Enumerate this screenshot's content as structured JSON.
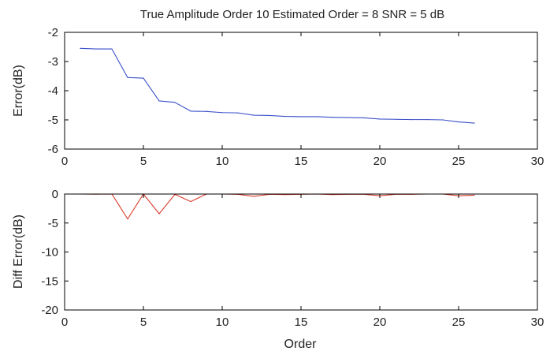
{
  "chart_data": [
    {
      "type": "line",
      "title": "True Amplitude Order 10  Estimated Order = 8   SNR = 5 dB",
      "xlabel": "",
      "ylabel": "Error(dB)",
      "xlim": [
        0,
        30
      ],
      "ylim": [
        -6,
        -2
      ],
      "xticks": [
        0,
        5,
        10,
        15,
        20,
        25,
        30
      ],
      "yticks": [
        -6,
        -5,
        -4,
        -3,
        -2
      ],
      "grid": false,
      "series": [
        {
          "color": "#3a4fc9",
          "x": [
            1,
            2,
            3,
            4,
            5,
            6,
            7,
            8,
            9,
            10,
            11,
            12,
            13,
            14,
            15,
            16,
            17,
            18,
            19,
            20,
            21,
            22,
            23,
            24,
            25,
            26
          ],
          "y": [
            -2.55,
            -2.57,
            -2.57,
            -3.55,
            -3.57,
            -4.35,
            -4.4,
            -4.7,
            -4.71,
            -4.75,
            -4.76,
            -4.84,
            -4.85,
            -4.88,
            -4.89,
            -4.89,
            -4.91,
            -4.92,
            -4.93,
            -4.97,
            -4.98,
            -4.99,
            -4.99,
            -5.0,
            -5.07,
            -5.11
          ]
        }
      ]
    },
    {
      "type": "line",
      "title": "",
      "xlabel": "Order",
      "ylabel": "Diff Error(dB)",
      "xlim": [
        0,
        30
      ],
      "ylim": [
        -20,
        0
      ],
      "xticks": [
        0,
        5,
        10,
        15,
        20,
        25,
        30
      ],
      "yticks": [
        -20,
        -15,
        -10,
        -5,
        0
      ],
      "grid": false,
      "series": [
        {
          "color": "#d93a2b",
          "x": [
            1,
            2,
            3,
            4,
            5,
            6,
            7,
            8,
            9,
            10,
            11,
            12,
            13,
            14,
            15,
            16,
            17,
            18,
            19,
            20,
            21,
            22,
            23,
            24,
            25,
            26
          ],
          "y": [
            0,
            -0.02,
            0,
            -4.3,
            0,
            -3.4,
            -0.05,
            -1.3,
            0,
            0,
            -0.05,
            -0.4,
            -0.05,
            -0.1,
            -0.05,
            0,
            -0.1,
            -0.05,
            -0.05,
            -0.3,
            -0.05,
            -0.05,
            0,
            0,
            -0.3,
            -0.2
          ]
        }
      ]
    }
  ]
}
